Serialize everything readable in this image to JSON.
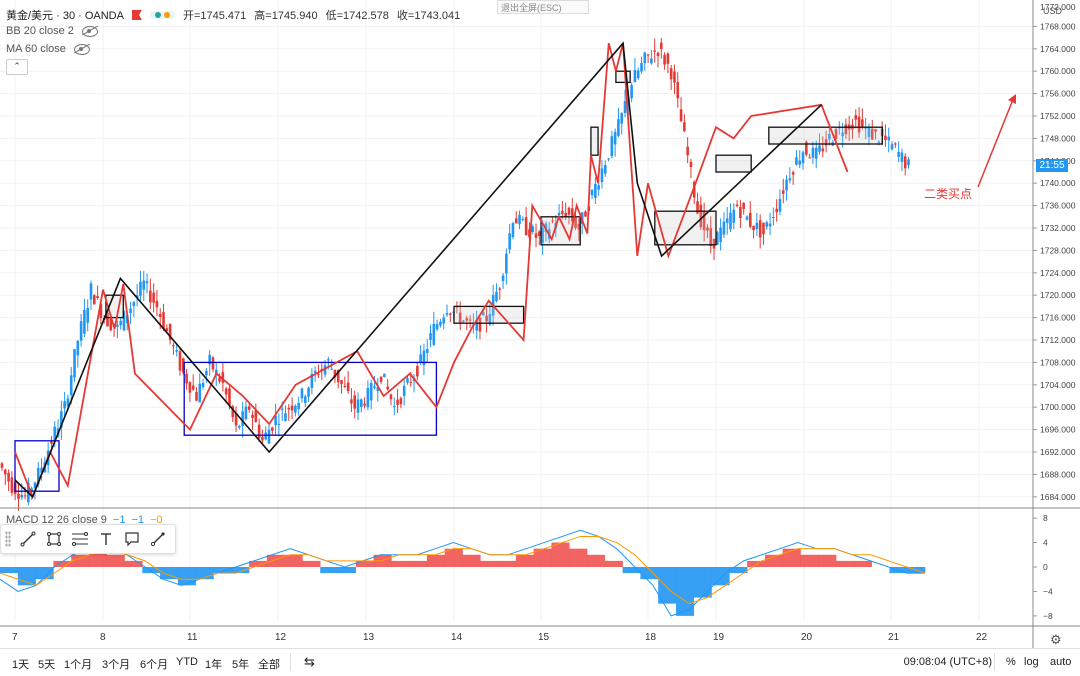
{
  "header": {
    "symbol_title": "黄金/美元 · 30 · OANDA",
    "open_label": "开=1745.471",
    "high_label": "高=1745.940",
    "low_label": "低=1742.578",
    "close_label": "收=1743.041",
    "exit_fullscreen": "退出全屏(ESC)"
  },
  "indicators": {
    "bb": "BB 20 close 2",
    "ma": "MA 60 close",
    "macd": "MACD 12 26 close 9",
    "macd_vals": [
      "−1",
      "−1",
      "−0"
    ],
    "collapse_label": "⌃"
  },
  "price_axis": {
    "currency": "USD",
    "labels": [
      "1768.000",
      "1764.000",
      "1760.000",
      "1756.000",
      "1752.000",
      "1748.000",
      "1744.000",
      "1740.000",
      "1736.000",
      "1732.000",
      "1728.000",
      "1724.000",
      "1720.000",
      "1716.000",
      "1712.000",
      "1708.000",
      "1704.000",
      "1700.000",
      "1696.000",
      "1692.000",
      "1688.000",
      "1684.000"
    ],
    "top_label": "1772.000",
    "countdown": "21:55"
  },
  "macd_axis": {
    "labels": [
      "8",
      "4",
      "0",
      "−4",
      "−8"
    ]
  },
  "time_axis": {
    "labels": [
      "7",
      "8",
      "11",
      "12",
      "13",
      "14",
      "15",
      "18",
      "19",
      "20",
      "21",
      "22"
    ]
  },
  "annotation": {
    "text": "二类买点"
  },
  "timeframes": [
    "1天",
    "5天",
    "1个月",
    "3个月",
    "6个月",
    "YTD",
    "1年",
    "5年",
    "全部"
  ],
  "footer": {
    "clock": "09:08:04 (UTC+8)",
    "percent": "%",
    "log": "log",
    "auto": "auto"
  },
  "drawing_tools": [
    "trendline-icon",
    "rectangle-icon",
    "fib-icon",
    "text-icon",
    "callout-icon",
    "brush-icon"
  ],
  "colors": {
    "up": "#2196f3",
    "down": "#e53935",
    "zigzag_red": "#e53935",
    "zigzag_black": "#111111",
    "zone_blue": "#0000cc",
    "macd_pos": "#ef5350",
    "macd_neg": "#2196f3",
    "dif": "#2196f3",
    "dea": "#ff9800"
  },
  "chart_data": {
    "type": "candlestick",
    "price_range": [
      1682,
      1772
    ],
    "macd_range": [
      -9,
      9
    ],
    "close_path": [
      1690,
      1686,
      1684,
      1688,
      1694,
      1700,
      1712,
      1721,
      1716,
      1714,
      1718,
      1722,
      1718,
      1712,
      1706,
      1702,
      1708,
      1704,
      1696,
      1700,
      1694,
      1698,
      1700,
      1702,
      1706,
      1708,
      1704,
      1700,
      1702,
      1706,
      1700,
      1704,
      1708,
      1714,
      1718,
      1716,
      1714,
      1716,
      1722,
      1734,
      1732,
      1730,
      1733,
      1735,
      1732,
      1738,
      1744,
      1750,
      1758,
      1762,
      1764,
      1760,
      1748,
      1735,
      1729,
      1732,
      1736,
      1733,
      1731,
      1736,
      1742,
      1746,
      1745,
      1748,
      1750,
      1751,
      1749,
      1748,
      1746,
      1743
    ],
    "zigzag_red": [
      [
        7.0,
        1692
      ],
      [
        7.2,
        1684
      ],
      [
        7.4,
        1692
      ],
      [
        7.6,
        1686
      ],
      [
        8.0,
        1721
      ],
      [
        8.4,
        1714
      ],
      [
        8.7,
        1722
      ],
      [
        9.1,
        1706
      ],
      [
        11.0,
        1696
      ],
      [
        11.3,
        1706
      ],
      [
        11.6,
        1702
      ],
      [
        11.9,
        1697
      ],
      [
        12.2,
        1704
      ],
      [
        12.9,
        1710
      ],
      [
        13.2,
        1702
      ],
      [
        13.5,
        1706
      ],
      [
        13.8,
        1700
      ],
      [
        14.0,
        1708
      ],
      [
        14.2,
        1714
      ],
      [
        14.4,
        1719
      ],
      [
        14.8,
        1712
      ],
      [
        14.9,
        1736
      ],
      [
        15.3,
        1730
      ],
      [
        15.5,
        1734
      ],
      [
        15.8,
        1730
      ],
      [
        16.0,
        1736
      ],
      [
        16.3,
        1731
      ],
      [
        16.4,
        1745
      ],
      [
        16.6,
        1740
      ],
      [
        16.9,
        1765
      ],
      [
        17.1,
        1760
      ],
      [
        17.3,
        1765
      ],
      [
        17.7,
        1727
      ],
      [
        18.0,
        1740
      ],
      [
        18.3,
        1727
      ],
      [
        18.7,
        1740
      ],
      [
        19.0,
        1750
      ],
      [
        19.2,
        1748
      ],
      [
        19.4,
        1752
      ],
      [
        19.8,
        1753
      ],
      [
        20.2,
        1754
      ],
      [
        20.5,
        1742
      ]
    ],
    "zigzag_black": [
      [
        7.0,
        1687
      ],
      [
        7.2,
        1684
      ],
      [
        8.6,
        1723
      ],
      [
        11.9,
        1692
      ],
      [
        17.3,
        1765
      ],
      [
        17.7,
        1740
      ],
      [
        18.2,
        1727
      ],
      [
        20.2,
        1754
      ]
    ],
    "zones": [
      {
        "from": [
          7.0,
          1694
        ],
        "to": [
          7.5,
          1685
        ],
        "color": "blue"
      },
      {
        "from": [
          8.1,
          1720
        ],
        "to": [
          8.7,
          1716
        ],
        "color": "black"
      },
      {
        "from": [
          10.8,
          1708
        ],
        "to": [
          13.8,
          1695
        ],
        "color": "blue"
      },
      {
        "from": [
          14.0,
          1718
        ],
        "to": [
          14.8,
          1715
        ],
        "color": "black"
      },
      {
        "from": [
          15.0,
          1734
        ],
        "to": [
          16.1,
          1729
        ],
        "color": "black"
      },
      {
        "from": [
          16.4,
          1750
        ],
        "to": [
          16.6,
          1745
        ],
        "color": "black"
      },
      {
        "from": [
          17.1,
          1760
        ],
        "to": [
          17.5,
          1758
        ],
        "color": "black"
      },
      {
        "from": [
          18.1,
          1735
        ],
        "to": [
          19.0,
          1729
        ],
        "color": "black"
      },
      {
        "from": [
          19.0,
          1745
        ],
        "to": [
          19.4,
          1742
        ],
        "color": "black"
      },
      {
        "from": [
          19.6,
          1750
        ],
        "to": [
          20.9,
          1747
        ],
        "color": "black"
      }
    ],
    "macd_hist": [
      -1,
      -3,
      -2,
      1,
      2,
      3,
      2,
      1,
      -1,
      -2,
      -3,
      -2,
      -1,
      -1,
      1,
      2,
      2,
      1,
      -1,
      -1,
      1,
      2,
      1,
      1,
      2,
      3,
      2,
      1,
      1,
      2,
      3,
      4,
      3,
      2,
      1,
      -1,
      -2,
      -6,
      -8,
      -5,
      -3,
      -1,
      1,
      2,
      3,
      2,
      2,
      1,
      1,
      0,
      -1,
      -1
    ],
    "dif": [
      -2,
      -4,
      -3,
      0,
      2,
      3,
      3,
      2,
      0,
      -2,
      -3,
      -2,
      -1,
      0,
      1,
      2,
      3,
      2,
      1,
      0,
      1,
      2,
      2,
      2,
      3,
      4,
      3,
      2,
      2,
      3,
      4,
      5,
      6,
      5,
      3,
      0,
      -3,
      -8,
      -7,
      -4,
      -1,
      1,
      2,
      3,
      4,
      3,
      3,
      2,
      1,
      0,
      -1,
      -1
    ],
    "dea": [
      -1,
      -2,
      -3,
      -1,
      1,
      2,
      3,
      2,
      1,
      -1,
      -2,
      -2,
      -1,
      -1,
      0,
      1,
      2,
      2,
      1,
      1,
      1,
      1,
      2,
      2,
      2,
      3,
      3,
      2,
      2,
      2,
      3,
      4,
      5,
      5,
      4,
      2,
      -1,
      -4,
      -6,
      -5,
      -3,
      -1,
      1,
      2,
      3,
      3,
      3,
      2,
      2,
      1,
      0,
      -1
    ]
  }
}
